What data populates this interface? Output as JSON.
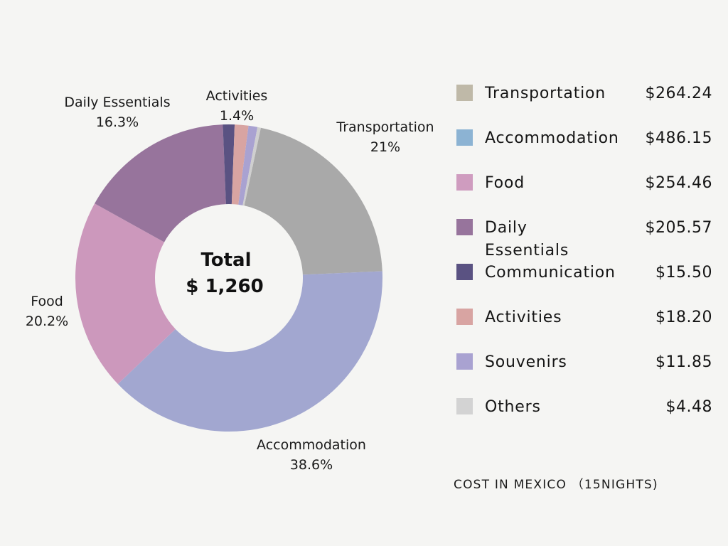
{
  "chart_data": {
    "type": "pie",
    "categories": [
      "Transportation",
      "Accommodation",
      "Food",
      "Daily Essentials",
      "Communication",
      "Activities",
      "Souvenirs",
      "Others"
    ],
    "values": [
      264.24,
      486.15,
      254.46,
      205.57,
      15.5,
      18.2,
      11.85,
      4.48
    ],
    "slice_labels": [
      {
        "name": "Transportation",
        "pct": "21%"
      },
      {
        "name": "Accommodation",
        "pct": "38.6%"
      },
      {
        "name": "Food",
        "pct": "20.2%"
      },
      {
        "name": "Daily Essentials",
        "pct": "16.3%"
      },
      {
        "name": "Activities",
        "pct": "1.4%"
      }
    ],
    "colors": [
      "#a9a9a9",
      "#a2a7d0",
      "#cc98bc",
      "#97749c",
      "#5a5282",
      "#d8a4a2",
      "#a9a2d1",
      "#cfcfcf"
    ],
    "center_title": "Total",
    "center_value": "$ 1,260",
    "legend_placement": "right"
  },
  "legend": [
    {
      "label": "Transportation",
      "value": "$264.24",
      "color": "#bfb9a8"
    },
    {
      "label": "Accommodation",
      "value": "$486.15",
      "color": "#8cb3d3"
    },
    {
      "label": "Food",
      "value": "$254.46",
      "color": "#cf9cbf"
    },
    {
      "label": "Daily Essentials",
      "value": "$205.57",
      "color": "#97749c"
    },
    {
      "label": "Communication",
      "value": "$15.50",
      "color": "#5a5282"
    },
    {
      "label": "Activities",
      "value": "$18.20",
      "color": "#d8a4a2"
    },
    {
      "label": "Souvenirs",
      "value": "$11.85",
      "color": "#a9a2d1"
    },
    {
      "label": "Others",
      "value": "$4.48",
      "color": "#d3d3d3"
    }
  ],
  "footnote": "COST IN MEXICO （15NIGHTS)"
}
